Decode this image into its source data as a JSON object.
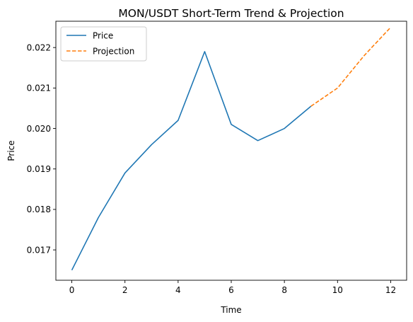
{
  "chart_data": {
    "type": "line",
    "title": "MON/USDT Short-Term Trend & Projection",
    "xlabel": "Time",
    "ylabel": "Price",
    "xlim": [
      -0.6,
      12.6
    ],
    "ylim": [
      0.01625,
      0.02265
    ],
    "x_ticks": [
      0,
      2,
      4,
      6,
      8,
      10,
      12
    ],
    "y_ticks": [
      0.017,
      0.018,
      0.019,
      0.02,
      0.021,
      0.022
    ],
    "y_tick_labels": [
      "0.017",
      "0.018",
      "0.019",
      "0.020",
      "0.021",
      "0.022"
    ],
    "grid": false,
    "legend_position": "top-left",
    "series": [
      {
        "name": "Price",
        "style": "solid",
        "color": "#1f77b4",
        "x": [
          0,
          1,
          2,
          3,
          4,
          5,
          6,
          7,
          8,
          9
        ],
        "y": [
          0.0165,
          0.0178,
          0.0189,
          0.0196,
          0.0202,
          0.0219,
          0.0201,
          0.0197,
          0.02,
          0.02055
        ]
      },
      {
        "name": "Projection",
        "style": "dashed",
        "color": "#ff7f0e",
        "x": [
          9,
          10,
          11,
          12
        ],
        "y": [
          0.02055,
          0.021,
          0.0218,
          0.0225
        ]
      }
    ]
  }
}
